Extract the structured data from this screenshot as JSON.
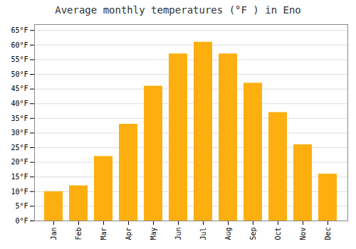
{
  "chart_data": {
    "type": "bar",
    "title": "Average monthly temperatures (°F ) in Eno",
    "categories": [
      "Jan",
      "Feb",
      "Mar",
      "Apr",
      "May",
      "Jun",
      "Jul",
      "Aug",
      "Sep",
      "Oct",
      "Nov",
      "Dec"
    ],
    "values": [
      10,
      12,
      22,
      33,
      46,
      57,
      61,
      57,
      47,
      37,
      26,
      16
    ],
    "color": "#fdaf0f",
    "ylim": [
      0,
      67
    ],
    "yticks": [
      {
        "value": 0,
        "label": "0°F"
      },
      {
        "value": 5,
        "label": "5°F"
      },
      {
        "value": 10,
        "label": "10°F"
      },
      {
        "value": 15,
        "label": "15°F"
      },
      {
        "value": 20,
        "label": "20°F"
      },
      {
        "value": 25,
        "label": "25°F"
      },
      {
        "value": 30,
        "label": "30°F"
      },
      {
        "value": 35,
        "label": "35°F"
      },
      {
        "value": 40,
        "label": "40°F"
      },
      {
        "value": 45,
        "label": "45°F"
      },
      {
        "value": 50,
        "label": "50°F"
      },
      {
        "value": 55,
        "label": "55°F"
      },
      {
        "value": 60,
        "label": "60°F"
      },
      {
        "value": 65,
        "label": "65°F"
      }
    ],
    "grid": true
  }
}
